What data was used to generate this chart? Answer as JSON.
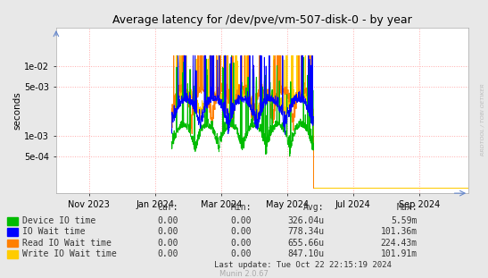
{
  "title": "Average latency for /dev/pve/vm-507-disk-0 - by year",
  "ylabel": "seconds",
  "watermark": "RRDTOOL / TOBI OETIKER",
  "munin_version": "Munin 2.0.67",
  "last_update": "Last update: Tue Oct 22 22:15:19 2024",
  "background_color": "#e8e8e8",
  "plot_bg_color": "#ffffff",
  "grid_color": "#ffaaaa",
  "x_tick_labels": [
    "Nov 2023",
    "Jan 2024",
    "Mar 2024",
    "May 2024",
    "Jul 2024",
    "Sep 2024"
  ],
  "x_tick_positions": [
    1.0,
    3.0,
    5.0,
    7.0,
    9.0,
    11.0
  ],
  "yticks_log": [
    0.0005,
    0.001,
    0.005,
    0.01
  ],
  "legend_entries": [
    {
      "label": "Device IO time",
      "color": "#00bb00"
    },
    {
      "label": "IO Wait time",
      "color": "#0000ff"
    },
    {
      "label": "Read IO Wait time",
      "color": "#ff7f00"
    },
    {
      "label": "Write IO Wait time",
      "color": "#ffcc00"
    }
  ],
  "table_data": [
    [
      "Device IO time",
      "0.00",
      "0.00",
      "326.04u",
      "5.59m"
    ],
    [
      "IO Wait time",
      "0.00",
      "0.00",
      "778.34u",
      "101.36m"
    ],
    [
      "Read IO Wait time",
      "0.00",
      "0.00",
      "655.66u",
      "224.43m"
    ],
    [
      "Write IO Wait time",
      "0.00",
      "0.00",
      "847.10u",
      "101.91m"
    ]
  ]
}
